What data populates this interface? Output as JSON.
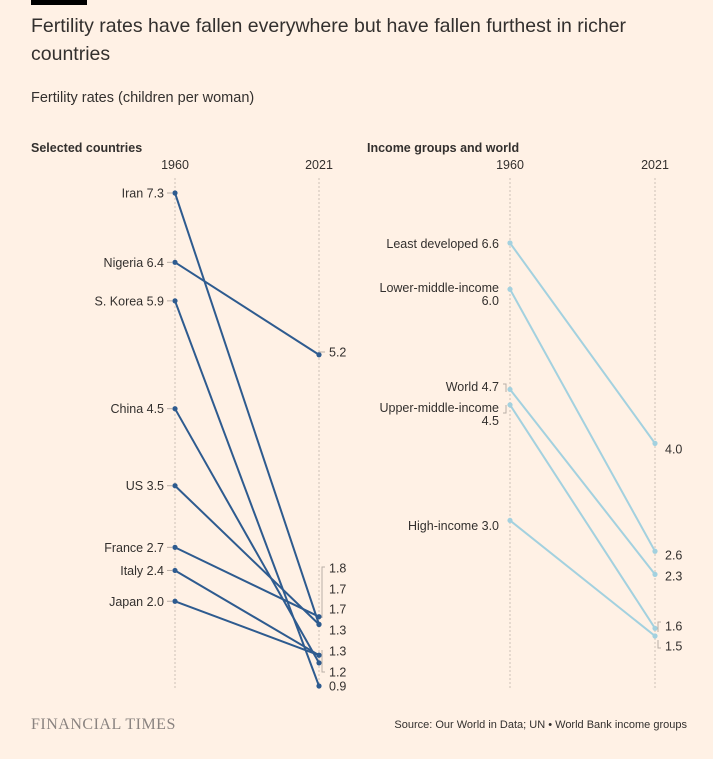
{
  "header": {
    "title": "Fertility rates have fallen everywhere but have fallen furthest in richer countries",
    "subtitle": "Fertility rates (children per woman)"
  },
  "footer": {
    "brand": "FINANCIAL TIMES",
    "source": "Source: Our World in Data; UN • World Bank income groups"
  },
  "colors": {
    "background": "#fff1e5",
    "left_series": "#2e5b8f",
    "right_series": "#a3d1df",
    "gridline": "#ccc1b7",
    "text": "#33302e"
  },
  "chart_data": [
    {
      "type": "line",
      "title": "Selected countries",
      "x": [
        "1960",
        "2021"
      ],
      "ylim": [
        0.9,
        7.3
      ],
      "series": [
        {
          "name": "Iran",
          "values": [
            7.3,
            1.7
          ]
        },
        {
          "name": "Nigeria",
          "values": [
            6.4,
            5.2
          ]
        },
        {
          "name": "S. Korea",
          "values": [
            5.9,
            0.9
          ]
        },
        {
          "name": "China",
          "values": [
            4.5,
            1.2
          ]
        },
        {
          "name": "US",
          "values": [
            3.5,
            1.7
          ]
        },
        {
          "name": "France",
          "values": [
            2.7,
            1.8
          ]
        },
        {
          "name": "Italy",
          "values": [
            2.4,
            1.3
          ]
        },
        {
          "name": "Japan",
          "values": [
            2.0,
            1.3
          ]
        }
      ],
      "end_labels": [
        "5.2",
        "1.8",
        "1.7",
        "1.7",
        "1.3",
        "1.3",
        "1.2",
        "0.9"
      ]
    },
    {
      "type": "line",
      "title": "Income groups and world",
      "x": [
        "1960",
        "2021"
      ],
      "ylim": [
        1.5,
        6.6
      ],
      "series": [
        {
          "name": "Least developed",
          "values": [
            6.6,
            4.0
          ]
        },
        {
          "name": "Lower-middle-income",
          "values": [
            6.0,
            2.6
          ]
        },
        {
          "name": "World",
          "values": [
            4.7,
            2.3
          ]
        },
        {
          "name": "Upper-middle-income",
          "values": [
            4.5,
            1.6
          ]
        },
        {
          "name": "High-income",
          "values": [
            3.0,
            1.5
          ]
        }
      ],
      "start_labels": [
        "Least developed 6.6",
        "Lower-middle-income",
        "6.0",
        "World 4.7",
        "Upper-middle-income",
        "4.5",
        "High-income 3.0"
      ],
      "end_labels": [
        "4.0",
        "2.6",
        "2.3",
        "1.6",
        "1.5"
      ]
    }
  ]
}
